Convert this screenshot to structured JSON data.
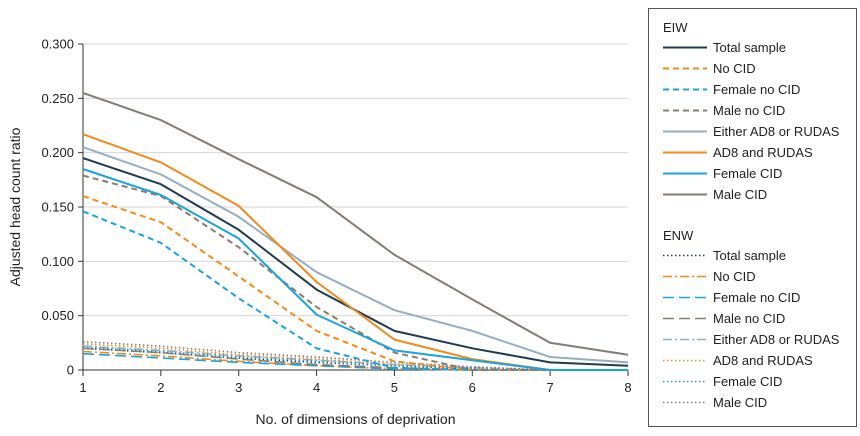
{
  "chart_data": {
    "type": "line",
    "xlabel": "No. of dimensions of deprivation",
    "ylabel": "Adjusted head count ratio",
    "x": [
      1,
      2,
      3,
      4,
      5,
      6,
      7,
      8
    ],
    "xlim": [
      1,
      8
    ],
    "ylim": [
      0,
      0.3
    ],
    "yticks": [
      "0",
      "0.050",
      "0.100",
      "0.150",
      "0.200",
      "0.250",
      "0.300"
    ],
    "grid": "horizontal",
    "legend_position": "right",
    "groups": [
      {
        "title": "EIW",
        "series": [
          {
            "name": "Total sample",
            "color": "#1f3b4d",
            "style": "solid",
            "values": [
              0.195,
              0.171,
              0.129,
              0.074,
              0.036,
              0.02,
              0.007,
              0.004
            ]
          },
          {
            "name": "No CID",
            "color": "#f08a1c",
            "style": "dashed",
            "values": [
              0.16,
              0.136,
              0.086,
              0.036,
              0.008,
              0,
              0,
              0
            ]
          },
          {
            "name": "Female no CID",
            "color": "#1ba3dc",
            "style": "dashed",
            "values": [
              0.146,
              0.117,
              0.066,
              0.02,
              0.002,
              0,
              0,
              0
            ]
          },
          {
            "name": "Male no CID",
            "color": "#8c7b6e",
            "style": "dashed",
            "values": [
              0.179,
              0.16,
              0.113,
              0.058,
              0.016,
              0,
              0,
              0
            ]
          },
          {
            "name": "Either AD8 or RUDAS",
            "color": "#94aec4",
            "style": "solid",
            "values": [
              0.205,
              0.18,
              0.141,
              0.09,
              0.055,
              0.036,
              0.012,
              0.007
            ]
          },
          {
            "name": "AD8 and RUDAS",
            "color": "#f08a1c",
            "style": "solid",
            "values": [
              0.217,
              0.191,
              0.151,
              0.081,
              0.028,
              0.01,
              0,
              0
            ]
          },
          {
            "name": "Female CID",
            "color": "#1ba3dc",
            "style": "solid",
            "values": [
              0.185,
              0.161,
              0.121,
              0.051,
              0.018,
              0.009,
              0,
              0
            ]
          },
          {
            "name": "Male CID",
            "color": "#877a70",
            "style": "solid",
            "values": [
              0.255,
              0.23,
              0.194,
              0.159,
              0.106,
              0.065,
              0.025,
              0.014
            ]
          }
        ]
      },
      {
        "title": "ENW",
        "series": [
          {
            "name": "Total sample",
            "color": "#1f3b4d",
            "style": "dotted",
            "values": [
              0.02,
              0.016,
              0.011,
              0.007,
              0.004,
              0.001,
              0,
              0
            ]
          },
          {
            "name": "No CID",
            "color": "#f08a1c",
            "style": "dashdot",
            "values": [
              0.017,
              0.013,
              0.008,
              0.004,
              0.001,
              0,
              0,
              0
            ]
          },
          {
            "name": "Female no CID",
            "color": "#1ba3dc",
            "style": "longdash",
            "values": [
              0.015,
              0.011,
              0.007,
              0.004,
              0.001,
              0,
              0,
              0
            ]
          },
          {
            "name": "Male no CID",
            "color": "#8c7b6e",
            "style": "longdash",
            "values": [
              0.02,
              0.016,
              0.01,
              0.005,
              0.002,
              0,
              0,
              0
            ]
          },
          {
            "name": "Either AD8 or RUDAS",
            "color": "#94aec4",
            "style": "dashdot",
            "values": [
              0.022,
              0.018,
              0.013,
              0.009,
              0.005,
              0.002,
              0,
              0
            ]
          },
          {
            "name": "AD8 and RUDAS",
            "color": "#f08a1c",
            "style": "dotted",
            "values": [
              0.024,
              0.02,
              0.014,
              0.01,
              0.005,
              0.002,
              0,
              0
            ]
          },
          {
            "name": "Female CID",
            "color": "#1ba3dc",
            "style": "dotted",
            "values": [
              0.021,
              0.017,
              0.012,
              0.008,
              0.004,
              0.002,
              0,
              0
            ]
          },
          {
            "name": "Male CID",
            "color": "#8c7b6e",
            "style": "dotted",
            "values": [
              0.026,
              0.022,
              0.016,
              0.012,
              0.007,
              0.003,
              0,
              0
            ]
          }
        ]
      }
    ]
  }
}
